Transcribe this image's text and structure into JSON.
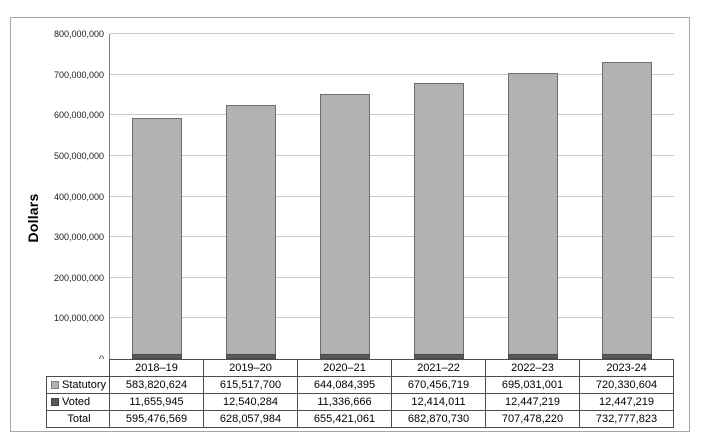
{
  "page": {
    "background": "#ffffff",
    "frame_border_color": "#a6a6a6"
  },
  "chart_data": {
    "type": "bar",
    "stacked": true,
    "title": "",
    "xlabel": "",
    "ylabel": "Dollars",
    "categories": [
      "2018–19",
      "2019–20",
      "2020–21",
      "2021–22",
      "2022–23",
      "2023-24"
    ],
    "series": [
      {
        "name": "Statutory",
        "color": "#b2b2b2",
        "values": [
          583820624,
          615517700,
          644084395,
          670456719,
          695031001,
          720330604
        ]
      },
      {
        "name": "Voted",
        "color": "#595959",
        "values": [
          11655945,
          12540284,
          11336666,
          12414011,
          12447219,
          12447219
        ]
      }
    ],
    "totals": [
      595476569,
      628057984,
      655421061,
      682870730,
      707478220,
      732777823
    ],
    "ylim": [
      0,
      800000000
    ],
    "ytick_step": 100000000,
    "ytick_labels": [
      "0",
      "100,000,000",
      "200,000,000",
      "300,000,000",
      "400,000,000",
      "500,000,000",
      "600,000,000",
      "700,000,000",
      "800,000,000"
    ],
    "grid": "horizontal",
    "legend_position": "table-row-labels"
  },
  "table": {
    "columns": [
      "2018–19",
      "2019–20",
      "2020–21",
      "2021–22",
      "2022–23",
      "2023-24"
    ],
    "rows": [
      {
        "label": "Statutory",
        "swatch": "statutory",
        "values": [
          "583,820,624",
          "615,517,700",
          "644,084,395",
          "670,456,719",
          "695,031,001",
          "720,330,604"
        ]
      },
      {
        "label": "Voted",
        "swatch": "voted",
        "values": [
          "11,655,945",
          "12,540,284",
          "11,336,666",
          "12,414,011",
          "12,447,219",
          "12,447,219"
        ]
      },
      {
        "label": "Total",
        "swatch": null,
        "values": [
          "595,476,569",
          "628,057,984",
          "655,421,061",
          "682,870,730",
          "707,478,220",
          "732,777,823"
        ]
      }
    ]
  }
}
